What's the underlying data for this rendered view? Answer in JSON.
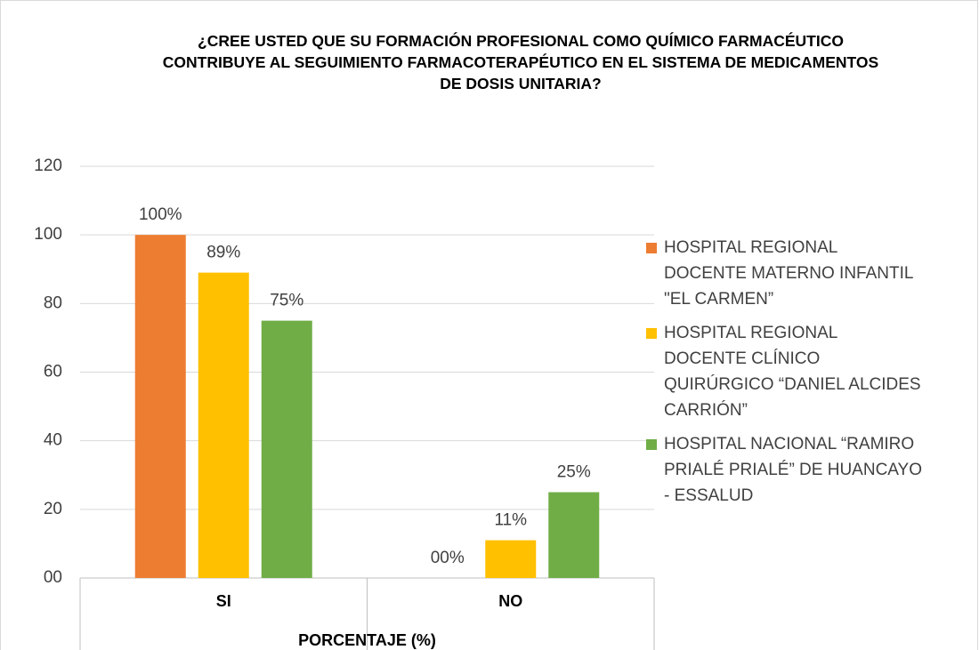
{
  "chart_data": {
    "type": "bar",
    "title": "¿CREE USTED QUE SU FORMACIÓN PROFESIONAL COMO QUÍMICO FARMACÉUTICO CONTRIBUYE AL SEGUIMIENTO FARMACOTERAPÉUTICO EN EL SISTEMA DE MEDICAMENTOS DE DOSIS UNITARIA?",
    "x_label": "PORCENTAJE (%)",
    "categories": [
      "SI",
      "NO"
    ],
    "series": [
      {
        "name": "HOSPITAL REGIONAL DOCENTE MATERNO INFANTIL \"EL CARMEN”",
        "color": "#ED7D31",
        "values": [
          100,
          0
        ],
        "value_labels": [
          "100%",
          "00%"
        ]
      },
      {
        "name": "HOSPITAL REGIONAL DOCENTE CLÍNICO QUIRÚRGICO “DANIEL ALCIDES CARRIÓN”",
        "color": "#FFC000",
        "values": [
          89,
          11
        ],
        "value_labels": [
          "89%",
          "11%"
        ]
      },
      {
        "name": "HOSPITAL NACIONAL “RAMIRO PRIALÉ PRIALÉ” DE HUANCAYO - ESSALUD",
        "color": "#70AD47",
        "values": [
          75,
          25
        ],
        "value_labels": [
          "75%",
          "25%"
        ]
      }
    ],
    "ylim": [
      0,
      120
    ],
    "yticks": [
      {
        "value": 0,
        "label": "00"
      },
      20,
      40,
      60,
      80,
      100,
      120
    ],
    "grid": true,
    "legend": "right"
  }
}
